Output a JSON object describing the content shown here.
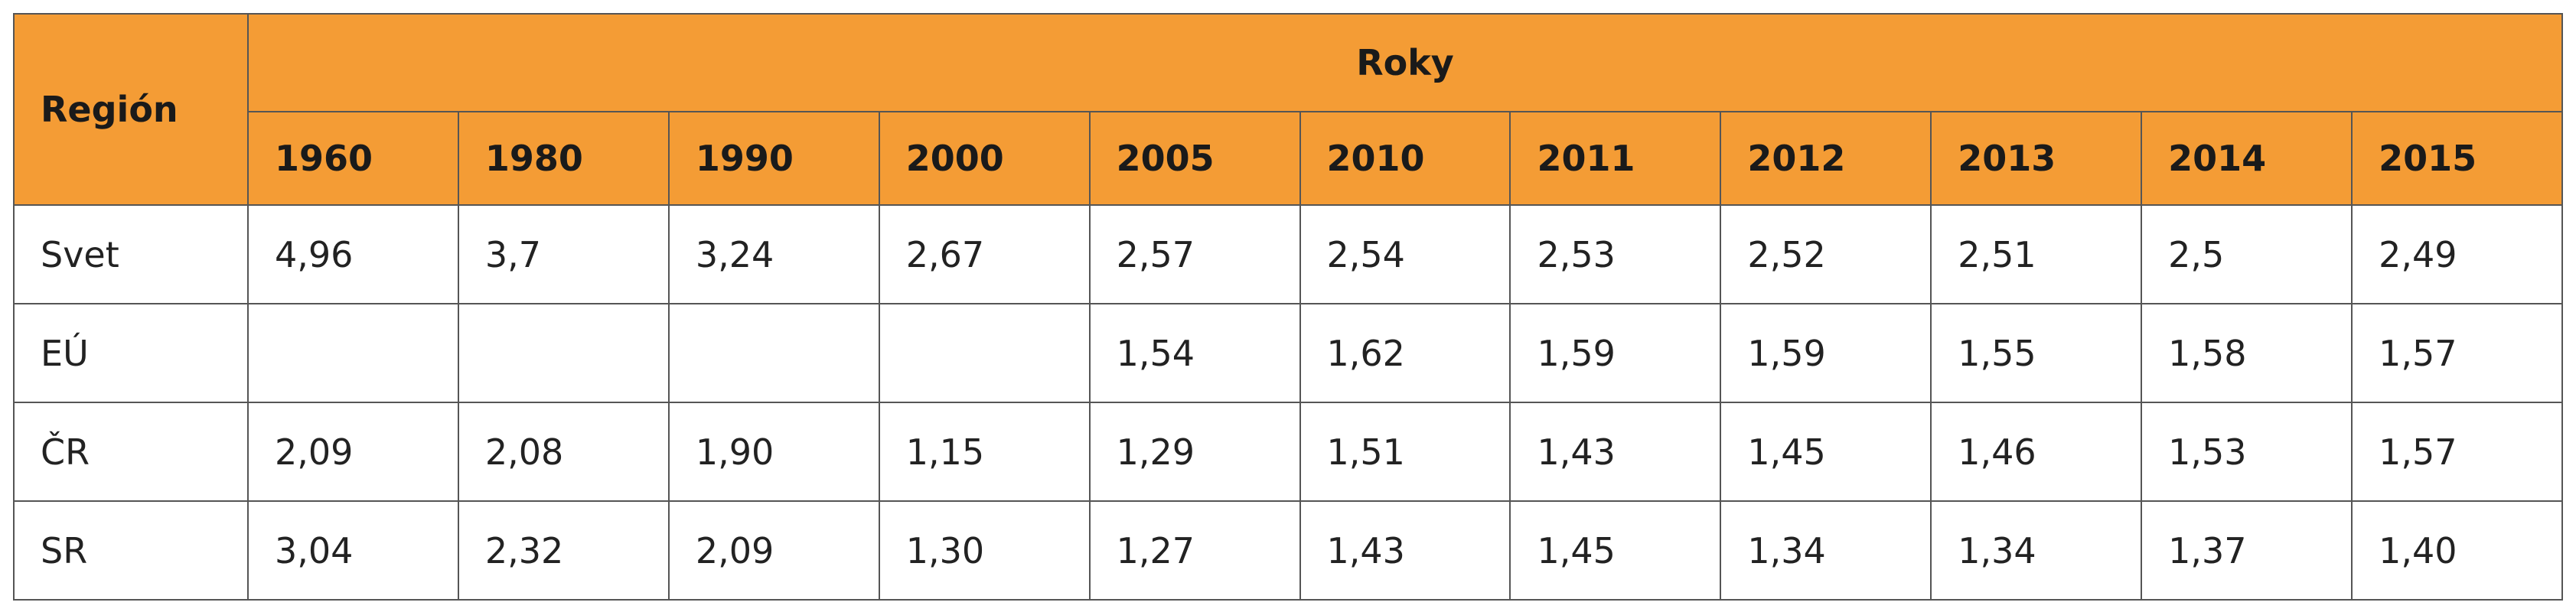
{
  "table": {
    "header": {
      "region": "Región",
      "group": "Roky",
      "years": [
        1960,
        1980,
        1990,
        2000,
        2005,
        2010,
        2011,
        2012,
        2013,
        2014,
        2015
      ]
    },
    "rows": [
      {
        "region": "Svet",
        "values": [
          "4,96",
          "3,7",
          "3,24",
          "2,67",
          "2,57",
          "2,54",
          "2,53",
          "2,52",
          "2,51",
          "2,5",
          "2,49"
        ]
      },
      {
        "region": "EÚ",
        "values": [
          null,
          null,
          null,
          null,
          "1,54",
          "1,62",
          "1,59",
          "1,59",
          "1,55",
          "1,58",
          "1,57"
        ]
      },
      {
        "region": "ČR",
        "values": [
          "2,09",
          "2,08",
          "1,90",
          "1,15",
          "1,29",
          "1,51",
          "1,43",
          "1,45",
          "1,46",
          "1,53",
          "1,57"
        ]
      },
      {
        "region": "SR",
        "values": [
          "3,04",
          "2,32",
          "2,09",
          "1,30",
          "1,27",
          "1,43",
          "1,45",
          "1,34",
          "1,34",
          "1,37",
          "1,40"
        ]
      }
    ]
  }
}
